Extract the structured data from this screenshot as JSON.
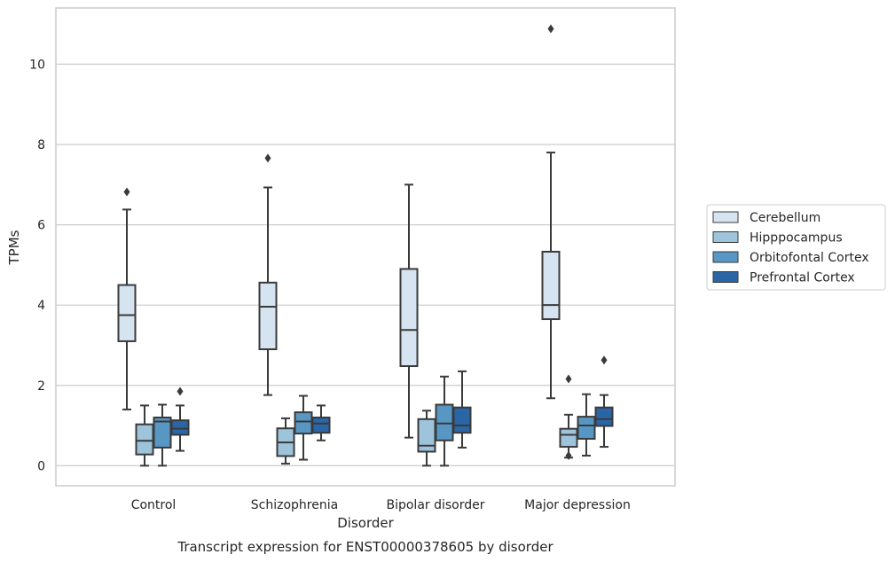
{
  "chart_data": {
    "type": "box",
    "title": "",
    "caption": "Transcript expression for ENST00000378605 by disorder",
    "xlabel": "Disorder",
    "ylabel": "TPMs",
    "ylim": [
      -0.5,
      11.4
    ],
    "yticks": [
      0,
      2,
      4,
      6,
      8,
      10
    ],
    "grid": "horizontal",
    "legend_position": "right",
    "categories": [
      "Control",
      "Schizophrenia",
      "Bipolar disorder",
      "Major depression"
    ],
    "series": [
      {
        "name": "Cerebellum",
        "color": "#d6e4f2",
        "boxes": [
          {
            "whisker_low": 1.4,
            "q1": 3.1,
            "median": 3.75,
            "q3": 4.5,
            "whisker_high": 6.38,
            "outliers": [
              6.82
            ]
          },
          {
            "whisker_low": 1.76,
            "q1": 2.9,
            "median": 3.96,
            "q3": 4.56,
            "whisker_high": 6.93,
            "outliers": [
              7.66
            ]
          },
          {
            "whisker_low": 0.7,
            "q1": 2.48,
            "median": 3.38,
            "q3": 4.9,
            "whisker_high": 7.0,
            "outliers": []
          },
          {
            "whisker_low": 1.68,
            "q1": 3.65,
            "median": 4.0,
            "q3": 5.33,
            "whisker_high": 7.8,
            "outliers": [
              10.88
            ]
          }
        ]
      },
      {
        "name": "Hipppocampus",
        "color": "#9ec4dc",
        "boxes": [
          {
            "whisker_low": 0.0,
            "q1": 0.28,
            "median": 0.62,
            "q3": 1.03,
            "whisker_high": 1.5,
            "outliers": []
          },
          {
            "whisker_low": 0.05,
            "q1": 0.24,
            "median": 0.58,
            "q3": 0.93,
            "whisker_high": 1.18,
            "outliers": []
          },
          {
            "whisker_low": 0.0,
            "q1": 0.35,
            "median": 0.5,
            "q3": 1.16,
            "whisker_high": 1.37,
            "outliers": []
          },
          {
            "whisker_low": 0.2,
            "q1": 0.47,
            "median": 0.77,
            "q3": 0.92,
            "whisker_high": 1.27,
            "outliers": [
              0.25,
              2.16
            ]
          }
        ]
      },
      {
        "name": "Orbitofontal Cortex",
        "color": "#5896c4",
        "boxes": [
          {
            "whisker_low": 0.0,
            "q1": 0.45,
            "median": 1.1,
            "q3": 1.2,
            "whisker_high": 1.52,
            "outliers": []
          },
          {
            "whisker_low": 0.15,
            "q1": 0.8,
            "median": 1.1,
            "q3": 1.33,
            "whisker_high": 1.74,
            "outliers": []
          },
          {
            "whisker_low": 0.0,
            "q1": 0.63,
            "median": 1.05,
            "q3": 1.52,
            "whisker_high": 2.22,
            "outliers": []
          },
          {
            "whisker_low": 0.25,
            "q1": 0.67,
            "median": 1.0,
            "q3": 1.22,
            "whisker_high": 1.78,
            "outliers": []
          }
        ]
      },
      {
        "name": "Prefrontal Cortex",
        "color": "#2a66a6",
        "boxes": [
          {
            "whisker_low": 0.37,
            "q1": 0.77,
            "median": 0.92,
            "q3": 1.13,
            "whisker_high": 1.5,
            "outliers": [
              1.85
            ]
          },
          {
            "whisker_low": 0.63,
            "q1": 0.82,
            "median": 1.05,
            "q3": 1.2,
            "whisker_high": 1.5,
            "outliers": []
          },
          {
            "whisker_low": 0.45,
            "q1": 0.82,
            "median": 1.0,
            "q3": 1.45,
            "whisker_high": 2.35,
            "outliers": []
          },
          {
            "whisker_low": 0.47,
            "q1": 0.99,
            "median": 1.16,
            "q3": 1.45,
            "whisker_high": 1.76,
            "outliers": [
              2.63
            ]
          }
        ]
      }
    ]
  }
}
